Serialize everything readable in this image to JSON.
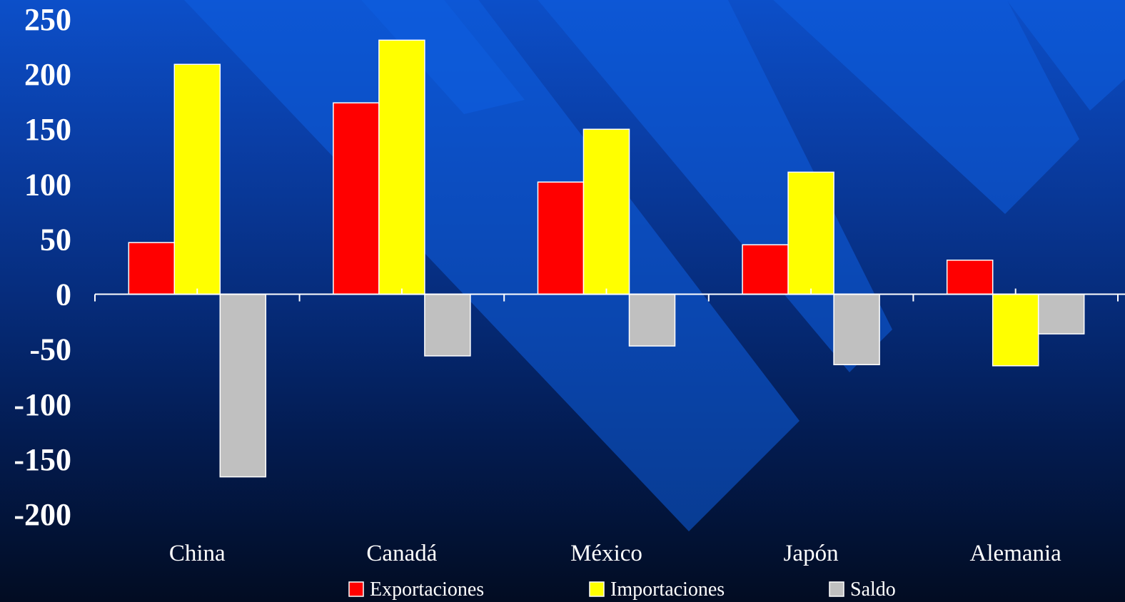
{
  "chart_data": {
    "type": "bar",
    "title": "",
    "xlabel": "",
    "ylabel": "",
    "categories": [
      "China",
      "Canadá",
      "México",
      "Japón",
      "Alemania"
    ],
    "series": [
      {
        "name": "Exportaciones",
        "color": "#ff0000",
        "values": [
          47,
          174,
          102,
          45,
          31
        ]
      },
      {
        "name": "Importaciones",
        "color": "#ffff00",
        "values": [
          209,
          231,
          150,
          111,
          -65
        ]
      },
      {
        "name": "Saldo",
        "color": "#c0c0c0",
        "values": [
          -166,
          -56,
          -47,
          -64,
          -36
        ]
      }
    ],
    "ylim": [
      -200,
      250
    ],
    "yticks": [
      "250",
      "200",
      "150",
      "100",
      "50",
      "0",
      "-50",
      "-100",
      "-150",
      "-200"
    ],
    "yticks_values": [
      250,
      200,
      150,
      100,
      50,
      0,
      -50,
      -100,
      -150,
      -200
    ],
    "grid": false,
    "legend_position": "bottom"
  }
}
